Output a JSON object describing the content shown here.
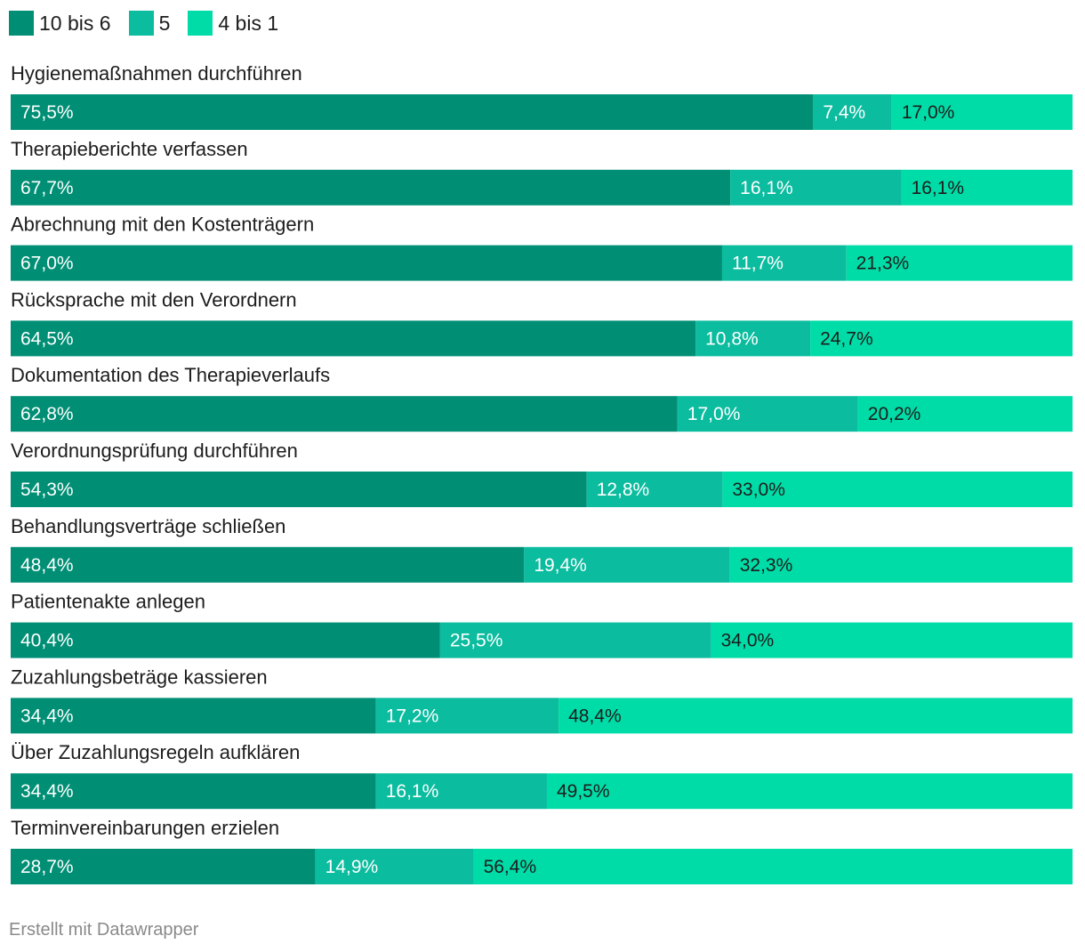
{
  "colors": {
    "series_1": "#008f75",
    "series_2": "#0bbc9f",
    "series_3": "#00dca7",
    "label_light": "#ffffff",
    "label_dark": "#1d1d1d"
  },
  "chart_data": {
    "type": "bar",
    "orientation": "horizontal",
    "stacked": true,
    "percent_stacked": true,
    "legend_position": "top-left",
    "series": [
      {
        "name": "10 bis 6",
        "values": [
          75.5,
          67.7,
          67.0,
          64.5,
          62.8,
          54.3,
          48.4,
          40.4,
          34.4,
          34.4,
          28.7
        ],
        "labels": [
          "75,5%",
          "67,7%",
          "67,0%",
          "64,5%",
          "62,8%",
          "54,3%",
          "48,4%",
          "40,4%",
          "34,4%",
          "34,4%",
          "28,7%"
        ]
      },
      {
        "name": "5",
        "values": [
          7.4,
          16.1,
          11.7,
          10.8,
          17.0,
          12.8,
          19.4,
          25.5,
          17.2,
          16.1,
          14.9
        ],
        "labels": [
          "7,4%",
          "16,1%",
          "11,7%",
          "10,8%",
          "17,0%",
          "12,8%",
          "19,4%",
          "25,5%",
          "17,2%",
          "16,1%",
          "14,9%"
        ]
      },
      {
        "name": "4 bis 1",
        "values": [
          17.0,
          16.1,
          21.3,
          24.7,
          20.2,
          33.0,
          32.3,
          34.0,
          48.4,
          49.5,
          56.4
        ],
        "labels": [
          "17,0%",
          "16,1%",
          "21,3%",
          "24,7%",
          "20,2%",
          "33,0%",
          "32,3%",
          "34,0%",
          "48,4%",
          "49,5%",
          "56,4%"
        ]
      }
    ],
    "categories": [
      "Hygienemaßnahmen durchführen",
      "Therapieberichte verfassen",
      "Abrechnung mit den Kostenträgern",
      "Rücksprache mit den Verordnern",
      "Dokumentation des Therapieverlaufs",
      "Verordnungsprüfung durchführen",
      "Behandlungsverträge schließen",
      "Patientenakte anlegen",
      "Zuzahlungsbeträge kassieren",
      "Über Zuzahlungsregeln aufklären",
      "Terminvereinbarungen erzielen"
    ]
  },
  "footer": {
    "credit": "Erstellt mit Datawrapper"
  }
}
